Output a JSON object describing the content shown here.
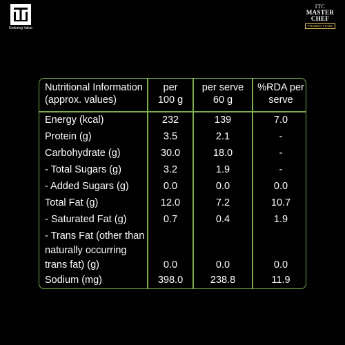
{
  "brand": {
    "itc_tagline": "Enduring Value",
    "mc_line1": "ITC",
    "mc_line2": "MASTER",
    "mc_line3": "CHEF",
    "mc_line4": "FROZEN FOOD"
  },
  "table": {
    "headers": {
      "label_line1": "Nutritional Information",
      "label_line2": "(approx. values)",
      "col2_line1": "per",
      "col2_line2": "100 g",
      "col3_line1": "per serve",
      "col3_line2": "60 g",
      "col4_line1": "%RDA per",
      "col4_line2": "serve"
    },
    "rows": [
      {
        "label": "Energy (kcal)",
        "per100": "232",
        "perserve": "139",
        "rda": "7.0"
      },
      {
        "label": "Protein (g)",
        "per100": "3.5",
        "perserve": "2.1",
        "rda": "-"
      },
      {
        "label": "Carbohydrate (g)",
        "per100": "30.0",
        "perserve": "18.0",
        "rda": "-"
      },
      {
        "label": "- Total Sugars (g)",
        "per100": "3.2",
        "perserve": "1.9",
        "rda": "-"
      },
      {
        "label": "- Added Sugars (g)",
        "per100": "0.0",
        "perserve": "0.0",
        "rda": "0.0"
      },
      {
        "label": "Total Fat (g)",
        "per100": "12.0",
        "perserve": "7.2",
        "rda": "10.7"
      },
      {
        "label": "- Saturated Fat (g)",
        "per100": "0.7",
        "perserve": "0.4",
        "rda": "1.9"
      },
      {
        "label_line1": "- Trans Fat (other than",
        "label_line2": "naturally occurring",
        "label_line3": "trans fat) (g)",
        "per100": "0.0",
        "perserve": "0.0",
        "rda": "0.0"
      },
      {
        "label": "Sodium (mg)",
        "per100": "398.0",
        "perserve": "238.8",
        "rda": "11.9"
      }
    ]
  },
  "colors": {
    "background": "#000000",
    "border": "#7cae4c",
    "text": "#ffffff",
    "accent": "#f0c75e"
  }
}
